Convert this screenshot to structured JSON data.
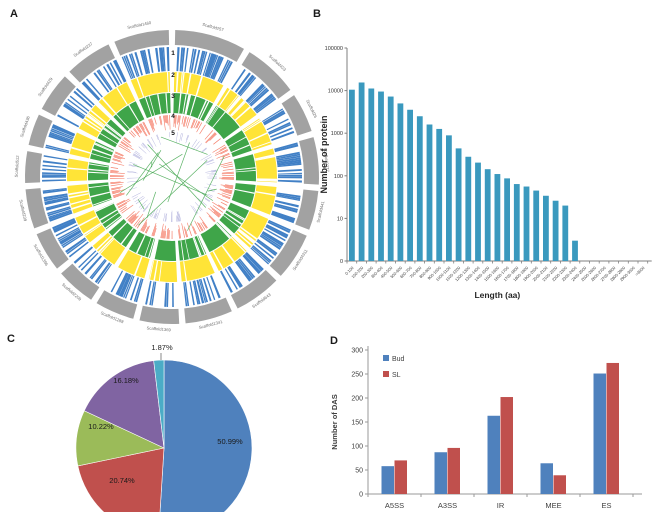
{
  "figure": {
    "background_color": "#ffffff",
    "panels": {
      "a": {
        "letter": "A"
      },
      "b": {
        "letter": "B"
      },
      "c": {
        "letter": "C"
      },
      "d": {
        "letter": "D"
      }
    }
  },
  "chart_data": [
    {
      "type": "circos",
      "panel": "A",
      "outer_ring_color": "#A2A2A2",
      "segment_labels": [
        "Scaffold257",
        "Scaffold423",
        "Scaffold26",
        "Scaffold2277",
        "Scaffold441",
        "Scaffold4311",
        "Scaffold643",
        "Scaffold1341",
        "Scaffold1369",
        "Scaffold1288",
        "Scaffold2209",
        "Scaffold1396",
        "Scaffold239",
        "Scaffold512",
        "Scaffold436",
        "Scaffold429",
        "Scaffold237",
        "Scaffold1460"
      ],
      "segment_weights": [
        9,
        7,
        5,
        6,
        5,
        6,
        6,
        6,
        5,
        5,
        5,
        5,
        5,
        4,
        4,
        5,
        6,
        7
      ],
      "tracks": [
        {
          "number": "1",
          "color": "#4180C6",
          "style": "dense-bars"
        },
        {
          "number": "2",
          "color": "#FFE437",
          "style": "band-with-gaps"
        },
        {
          "number": "3",
          "color": "#3FA549",
          "style": "band-with-gaps"
        },
        {
          "number": "4",
          "color": "#F5826E",
          "style": "sparse-bars"
        },
        {
          "number": "5",
          "color": "#A9A9D9",
          "style": "sparse-ticks"
        }
      ],
      "link_color": "#3FA54B"
    },
    {
      "type": "bar",
      "panel": "B",
      "title": "",
      "ylabel": "Number of protein",
      "xlabel": "Length (aa)",
      "yscale": "log",
      "ytick_labels": [
        "100000",
        "10000",
        "1000",
        "100",
        "10",
        "0"
      ],
      "bar_color": "#3A99BE",
      "categories": [
        "0-100",
        "100-200",
        "200-300",
        "300-400",
        "400-500",
        "500-600",
        "600-700",
        "700-800",
        "800-900",
        "900-1000",
        "1000-1100",
        "1100-1200",
        "1200-1300",
        "1300-1400",
        "1400-1500",
        "1500-1600",
        "1600-1700",
        "1700-1800",
        "1800-1900",
        "1900-2000",
        "2000-2100",
        "2100-2200",
        "2200-2300",
        "2300-2400",
        "2400-2500",
        "2500-2600",
        "2600-2700",
        "2700-2800",
        "2800-2900",
        "2900-3000",
        ">3000"
      ],
      "values": [
        10500,
        15500,
        11200,
        9500,
        7250,
        5000,
        3550,
        2500,
        1600,
        1260,
        890,
        440,
        280,
        204,
        143,
        110,
        87,
        64,
        56,
        45,
        34,
        26,
        20,
        3,
        0,
        0,
        0,
        0,
        0,
        0,
        0
      ]
    },
    {
      "type": "pie",
      "panel": "C",
      "start_angle_deg": 0,
      "direction": "clockwise",
      "slices": [
        {
          "label": "50.99%",
          "value": 50.99,
          "color": "#4F81BD"
        },
        {
          "label": "20.74%",
          "value": 20.74,
          "color": "#C0504D"
        },
        {
          "label": "10.22%",
          "value": 10.22,
          "color": "#9BBB59"
        },
        {
          "label": "16.18%",
          "value": 16.18,
          "color": "#8064A2"
        },
        {
          "label": "1.87%",
          "value": 1.87,
          "color": "#4BACC6"
        }
      ]
    },
    {
      "type": "bar",
      "panel": "D",
      "ylabel": "Number of DAS",
      "ylim": [
        0,
        300
      ],
      "ytick_step": 50,
      "categories": [
        "A5SS",
        "A3SS",
        "IR",
        "MEE",
        "ES"
      ],
      "series": [
        {
          "name": "Bud",
          "color": "#4F81BD",
          "values": [
            58,
            87,
            163,
            64,
            251
          ]
        },
        {
          "name": "SL",
          "color": "#C0504D",
          "values": [
            70,
            96,
            202,
            39,
            273
          ]
        }
      ],
      "legend_position": "top-left-inside"
    }
  ]
}
